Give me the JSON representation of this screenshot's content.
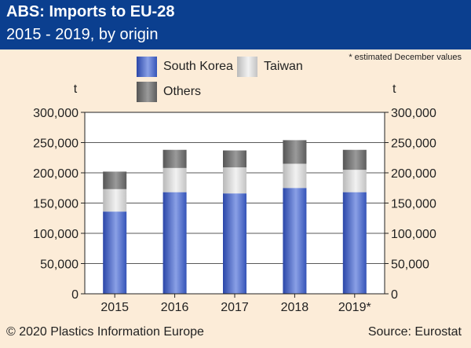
{
  "header": {
    "title": "ABS: Imports to EU-28",
    "subtitle": "2015 - 2019, by origin"
  },
  "note": "* estimated December values",
  "footer": {
    "copyright": "© 2020 Plastics Information Europe",
    "source": "Source: Eurostat"
  },
  "colors": {
    "header_bg": "#0b3f8f",
    "background": "#fcecd8",
    "south_korea": "#3c5bc0",
    "taiwan": "#cfcfcf",
    "others": "#6e6e6e"
  },
  "chart_data": {
    "type": "bar",
    "stacked": true,
    "categories": [
      "2015",
      "2016",
      "2017",
      "2018",
      "2019*"
    ],
    "series": [
      {
        "name": "South Korea",
        "values": [
          136000,
          168000,
          166000,
          175000,
          168000
        ]
      },
      {
        "name": "Taiwan",
        "values": [
          37000,
          40000,
          43000,
          40000,
          37000
        ]
      },
      {
        "name": "Others",
        "values": [
          29000,
          30000,
          28000,
          39000,
          33000
        ]
      }
    ],
    "ylabel_left": "t",
    "ylabel_right": "t",
    "ylim": [
      0,
      300000
    ],
    "yticks": [
      "0",
      "50,000",
      "100,000",
      "150,000",
      "200,000",
      "250,000",
      "300,000"
    ],
    "grid": true,
    "legend_position": "top"
  }
}
